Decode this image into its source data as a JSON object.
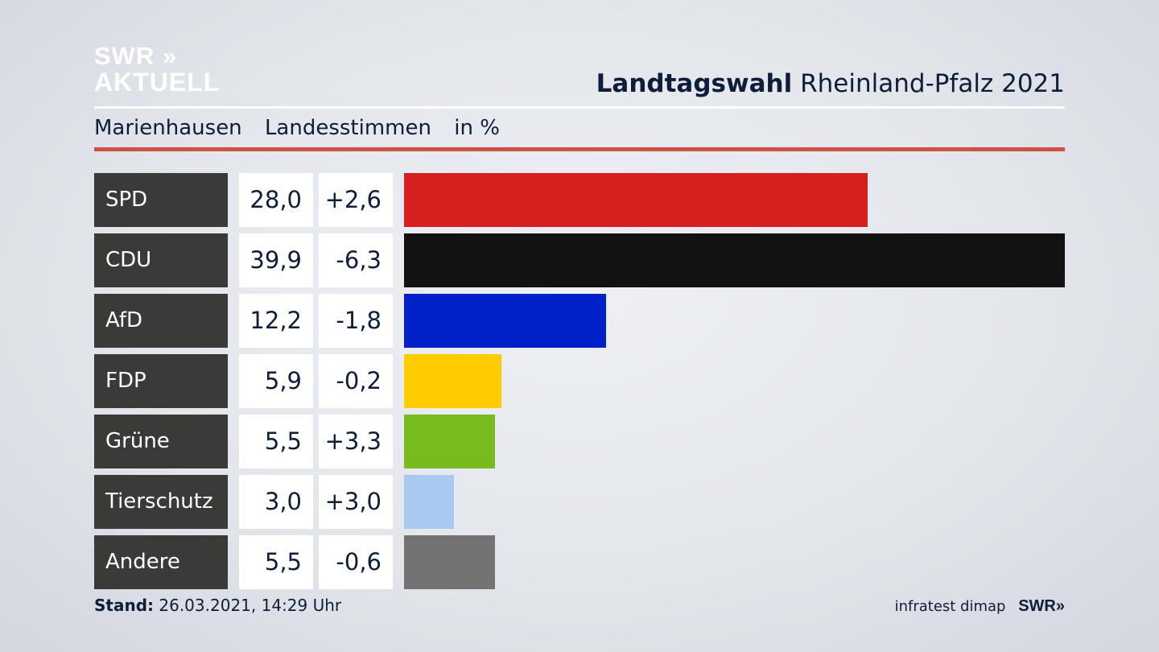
{
  "header": {
    "logo_line1": "SWR »",
    "logo_line2": "AKTUELL",
    "title_bold": "Landtagswahl",
    "title_rest": "Rheinland-Pfalz 2021"
  },
  "subheader": {
    "location": "Marienhausen",
    "measure": "Landesstimmen",
    "unit": "in %"
  },
  "chart_data": {
    "type": "bar",
    "categories": [
      "SPD",
      "CDU",
      "AfD",
      "FDP",
      "Grüne",
      "Tierschutz",
      "Andere"
    ],
    "values": [
      28.0,
      39.9,
      12.2,
      5.9,
      5.5,
      3.0,
      5.5
    ],
    "value_labels": [
      "28,0",
      "39,9",
      "12,2",
      "5,9",
      "5,5",
      "3,0",
      "5,5"
    ],
    "change_labels": [
      "+2,6",
      "-6,3",
      "-1,8",
      "-0,2",
      "+3,3",
      "+3,0",
      "-0,6"
    ],
    "changes": [
      2.6,
      -6.3,
      -1.8,
      -0.2,
      3.3,
      3.0,
      -0.6
    ],
    "colors": [
      "#d62020",
      "#121212",
      "#0021c8",
      "#ffcc00",
      "#78bb1e",
      "#a9c9f1",
      "#737373"
    ],
    "xlim": [
      0,
      39.9
    ]
  },
  "footer": {
    "stand_label": "Stand:",
    "stand_value": "26.03.2021, 14:29 Uhr",
    "source": "infratest dimap",
    "source_logo": "SWR»"
  }
}
